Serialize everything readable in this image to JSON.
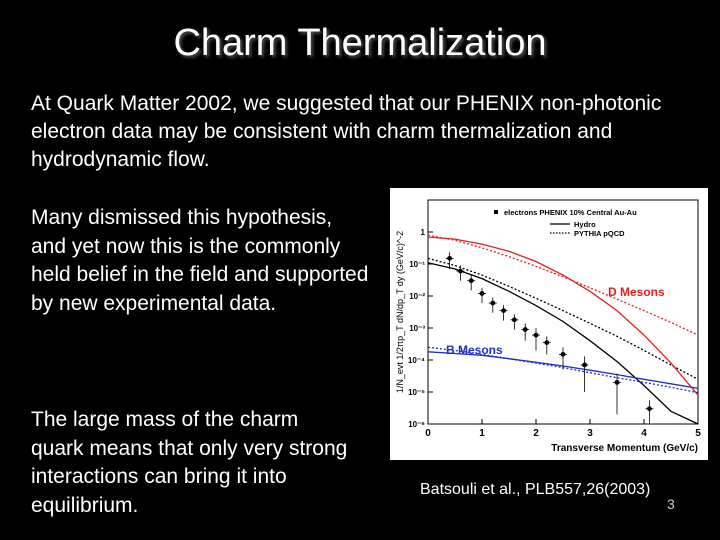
{
  "slide": {
    "title": "Charm Thermalization",
    "paragraph1": "At Quark Matter 2002, we suggested that our PHENIX non-photonic electron data may be consistent with charm thermalization and hydrodynamic flow.",
    "paragraph2": "Many dismissed this hypothesis, and yet now this is the commonly held belief in the field and supported by new experimental data.",
    "paragraph3": "The large mass of the charm quark means that only very strong interactions can bring it into equilibrium.",
    "citation": "Batsouli et al., PLB557,26(2003)",
    "slide_number": "3"
  },
  "chart_data": {
    "type": "scatter",
    "log_y": true,
    "xlabel": "Transverse Momentum (GeV/c)",
    "ylabel": "1/N_evt 1/2πp_T dN/dp_T dy (GeV/c)^-2",
    "xlim": [
      0,
      5
    ],
    "ylim": [
      1e-06,
      10
    ],
    "xticks": [
      "0",
      "1",
      "2",
      "3",
      "4",
      "5"
    ],
    "yticks": [
      "1",
      "10⁻¹",
      "10⁻²",
      "10⁻³",
      "10⁻⁴",
      "10⁻⁵",
      "10⁻⁶"
    ],
    "legend": {
      "position": "top-right",
      "entries": [
        {
          "label": "electrons PHENIX 10% Central Au-Au",
          "style": "marker"
        },
        {
          "label": "Hydro",
          "style": "solid"
        },
        {
          "label": "PYTHIA pQCD",
          "style": "dotted"
        }
      ]
    },
    "annotations": [
      {
        "text": "D Mesons",
        "color": "#e02020"
      },
      {
        "text": "B Mesons",
        "color": "#2030c0"
      }
    ],
    "colors": {
      "d_mesons": "#e02020",
      "b_mesons": "#2030c0",
      "data": "#000000"
    },
    "series": [
      {
        "name": "electrons PHENIX 10% Central Au-Au",
        "kind": "points",
        "x": [
          0.4,
          0.6,
          0.8,
          1.0,
          1.2,
          1.4,
          1.6,
          1.8,
          2.0,
          2.2,
          2.5,
          2.9,
          3.5,
          4.1
        ],
        "y": [
          0.15,
          0.06,
          0.03,
          0.012,
          0.006,
          0.0035,
          0.0018,
          0.0009,
          0.0006,
          0.00035,
          0.00015,
          7e-05,
          2e-05,
          3e-06
        ],
        "yerr": [
          0.08,
          0.03,
          0.015,
          0.006,
          0.003,
          0.0018,
          0.0009,
          0.0005,
          0.0004,
          0.0002,
          0.0001,
          6e-05,
          1.8e-05,
          2.5e-06
        ]
      },
      {
        "name": "Hydro",
        "kind": "line",
        "line": "solid",
        "x": [
          0.0,
          0.5,
          1.0,
          1.5,
          2.0,
          2.5,
          3.0,
          3.5,
          4.0,
          4.5,
          5.0
        ],
        "y": [
          0.11,
          0.07,
          0.035,
          0.014,
          0.005,
          0.0016,
          0.0004,
          9e-05,
          1.6e-05,
          2.5e-06,
          3e-07
        ]
      },
      {
        "name": "PYTHIA pQCD",
        "kind": "line",
        "line": "dotted",
        "x": [
          0.0,
          0.5,
          1.0,
          1.5,
          2.0,
          2.5,
          3.0,
          3.5,
          4.0,
          4.5,
          5.0
        ],
        "y": [
          0.15,
          0.09,
          0.045,
          0.02,
          0.0085,
          0.0035,
          0.0014,
          0.00055,
          0.0002,
          7e-05,
          2.5e-05
        ]
      },
      {
        "name": "Hydro",
        "kind": "line",
        "line": "solid",
        "color": "#e02020",
        "x": [
          0.0,
          0.5,
          1.0,
          1.5,
          2.0,
          2.5,
          3.0,
          3.5,
          4.0,
          4.5,
          5.0
        ],
        "y": [
          0.7,
          0.6,
          0.42,
          0.25,
          0.12,
          0.045,
          0.014,
          0.0035,
          0.0006,
          8e-05,
          8e-06
        ]
      },
      {
        "name": "PYTHIA pQCD",
        "kind": "line",
        "line": "dotted",
        "color": "#e02020",
        "x": [
          0.0,
          0.5,
          1.0,
          1.5,
          2.0,
          2.5,
          3.0,
          3.5,
          4.0,
          4.5,
          5.0
        ],
        "y": [
          0.8,
          0.55,
          0.32,
          0.17,
          0.085,
          0.04,
          0.018,
          0.008,
          0.0035,
          0.0015,
          0.0006
        ]
      },
      {
        "name": "Hydro",
        "kind": "line",
        "line": "solid",
        "color": "#2030c0",
        "x": [
          0.0,
          0.5,
          1.0,
          1.5,
          2.0,
          2.5,
          3.0,
          3.5,
          4.0,
          4.5,
          5.0
        ],
        "y": [
          0.00018,
          0.00016,
          0.00014,
          0.00011,
          8.5e-05,
          6.5e-05,
          4.8e-05,
          3.5e-05,
          2.5e-05,
          1.8e-05,
          1.3e-05
        ]
      },
      {
        "name": "PYTHIA pQCD",
        "kind": "line",
        "line": "dotted",
        "color": "#2030c0",
        "x": [
          0.0,
          0.5,
          1.0,
          1.5,
          2.0,
          2.5,
          3.0,
          3.5,
          4.0,
          4.5,
          5.0
        ],
        "y": [
          0.00025,
          0.0002,
          0.00015,
          0.00011,
          8e-05,
          5.8e-05,
          4e-05,
          2.8e-05,
          2e-05,
          1.4e-05,
          9.5e-06
        ]
      }
    ]
  }
}
